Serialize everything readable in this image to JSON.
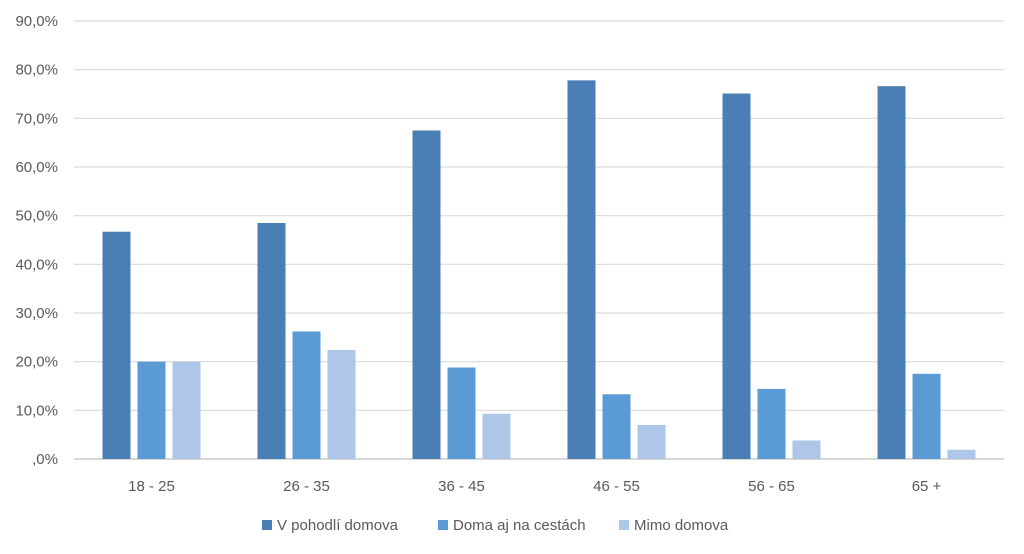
{
  "chart_data": {
    "type": "bar",
    "title": "",
    "xlabel": "",
    "ylabel": "",
    "categories": [
      "18 - 25",
      "26 - 35",
      "36 - 45",
      "46 - 55",
      "56 - 65",
      "65 +"
    ],
    "series": [
      {
        "name": "V pohodlí domova",
        "color": "#4a7fb5",
        "values": [
          46.7,
          48.5,
          67.5,
          77.8,
          75.1,
          76.6
        ]
      },
      {
        "name": "Doma aj na cestách",
        "color": "#5b9bd5",
        "values": [
          20.0,
          26.2,
          18.8,
          13.3,
          14.4,
          17.5
        ]
      },
      {
        "name": "Mimo domova",
        "color": "#aec7e8",
        "values": [
          20.0,
          22.4,
          9.3,
          7.0,
          3.8,
          1.9
        ]
      }
    ],
    "ylim": [
      0,
      90
    ],
    "yticks": [
      0,
      10,
      20,
      30,
      40,
      50,
      60,
      70,
      80,
      90
    ],
    "ytick_labels": [
      ",0%",
      "10,0%",
      "20,0%",
      "30,0%",
      "40,0%",
      "50,0%",
      "60,0%",
      "70,0%",
      "80,0%",
      "90,0%"
    ],
    "grid": true,
    "legend_position": "bottom",
    "gridline_color": "#d9d9d9",
    "axis_color": "#bfbfbf"
  }
}
